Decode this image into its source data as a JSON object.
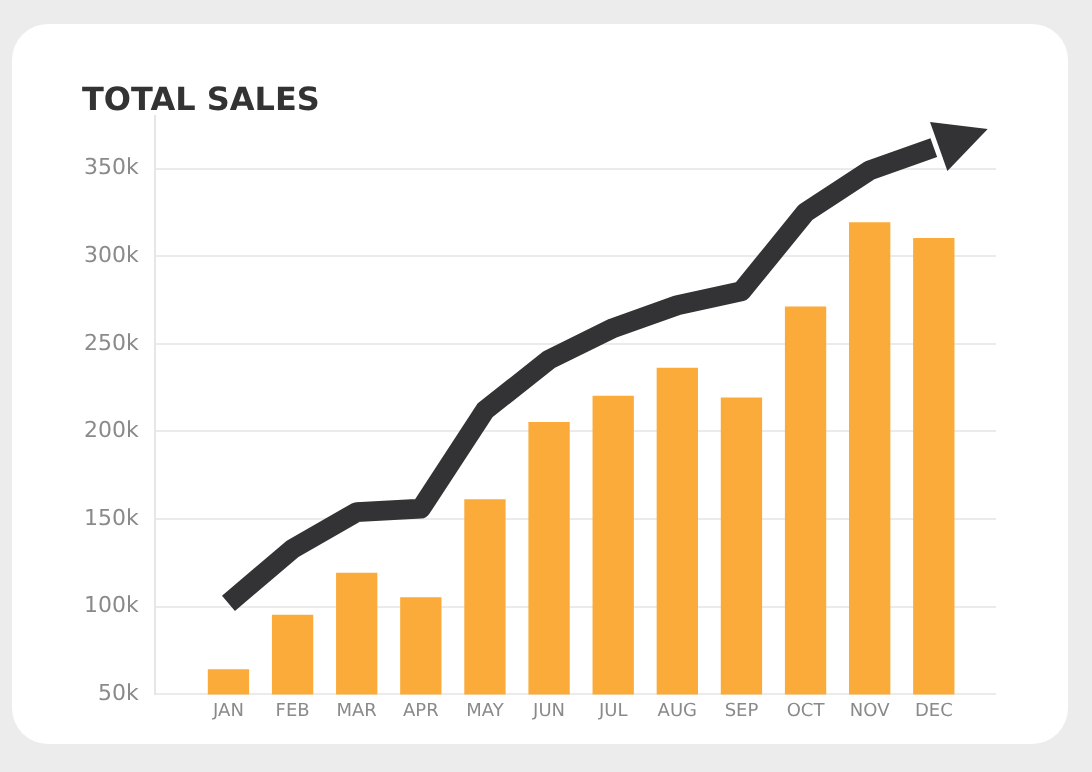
{
  "chart_data": {
    "type": "bar",
    "title": "TOTAL SALES",
    "categories": [
      "JAN",
      "FEB",
      "MAR",
      "APR",
      "MAY",
      "JUN",
      "JUL",
      "AUG",
      "SEP",
      "OCT",
      "NOV",
      "DEC"
    ],
    "series": [
      {
        "color": "#fbab3a",
        "values": [
          64000,
          95000,
          119000,
          105000,
          161000,
          205000,
          220000,
          236000,
          219000,
          271000,
          319000,
          310000
        ]
      },
      {
        "type": "line",
        "color": "#333336",
        "values": [
          102000,
          133000,
          154000,
          156000,
          212000,
          241000,
          259000,
          272000,
          280000,
          325000,
          349000,
          362000
        ]
      }
    ],
    "ylim": [
      50000,
      380000
    ],
    "yticks": [
      {
        "value": 50000,
        "label": "50k"
      },
      {
        "value": 100000,
        "label": "100k"
      },
      {
        "value": 150000,
        "label": "150k"
      },
      {
        "value": 200000,
        "label": "200k"
      },
      {
        "value": 250000,
        "label": "250k"
      },
      {
        "value": 300000,
        "label": "300k"
      },
      {
        "value": 350000,
        "label": "350k"
      }
    ],
    "grid": "y",
    "legend": false,
    "marker": "none",
    "line_style": "solid"
  }
}
